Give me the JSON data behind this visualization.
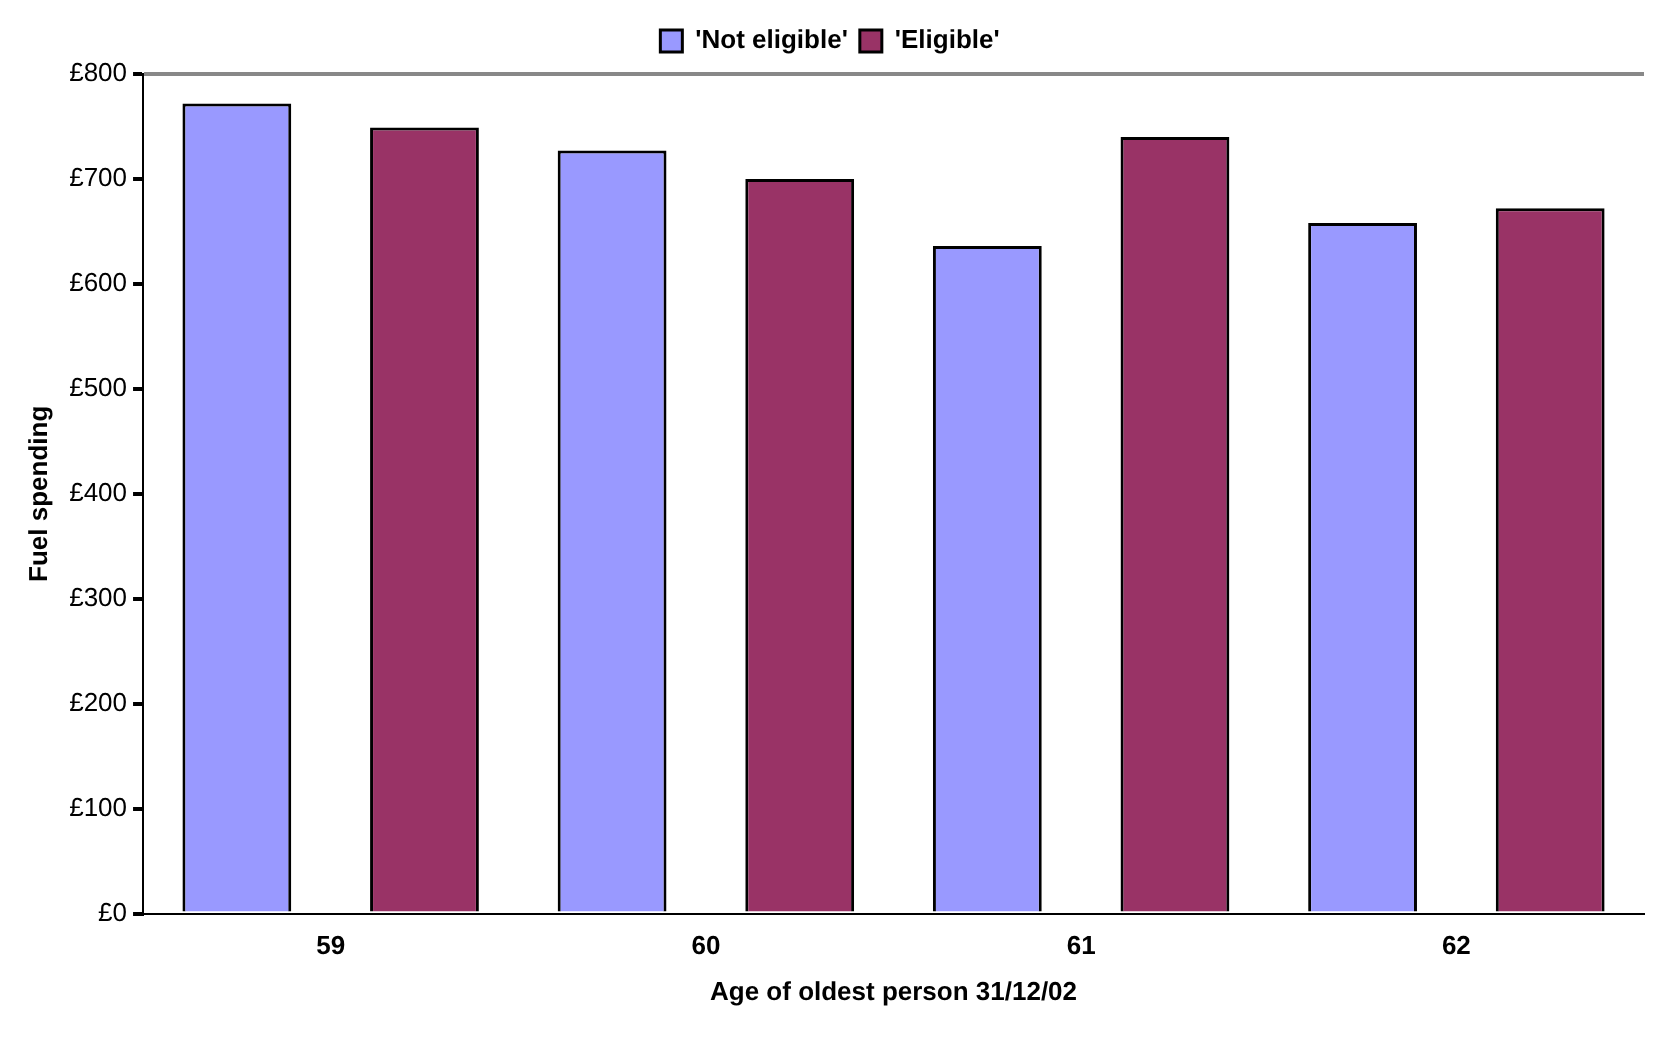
{
  "chart_data": {
    "type": "bar",
    "xlabel": "Age of oldest person 31/12/02",
    "ylabel": "Fuel spending",
    "categories": [
      "59",
      "60",
      "61",
      "62"
    ],
    "series": [
      {
        "name": "'Not eligible'",
        "color": "#9999ff",
        "values": [
          772,
          727,
          636,
          658
        ]
      },
      {
        "name": "'Eligible'",
        "color": "#993366",
        "values": [
          749,
          700,
          740,
          672
        ]
      }
    ],
    "ylim": [
      0,
      800
    ],
    "yticks": [
      {
        "value": 0,
        "label": "£0"
      },
      {
        "value": 100,
        "label": "£100"
      },
      {
        "value": 200,
        "label": "£200"
      },
      {
        "value": 300,
        "label": "£300"
      },
      {
        "value": 400,
        "label": "£400"
      },
      {
        "value": 500,
        "label": "£500"
      },
      {
        "value": 600,
        "label": "£600"
      },
      {
        "value": 700,
        "label": "£700"
      },
      {
        "value": 800,
        "label": "£800"
      }
    ],
    "grid": false,
    "legend": "top"
  }
}
